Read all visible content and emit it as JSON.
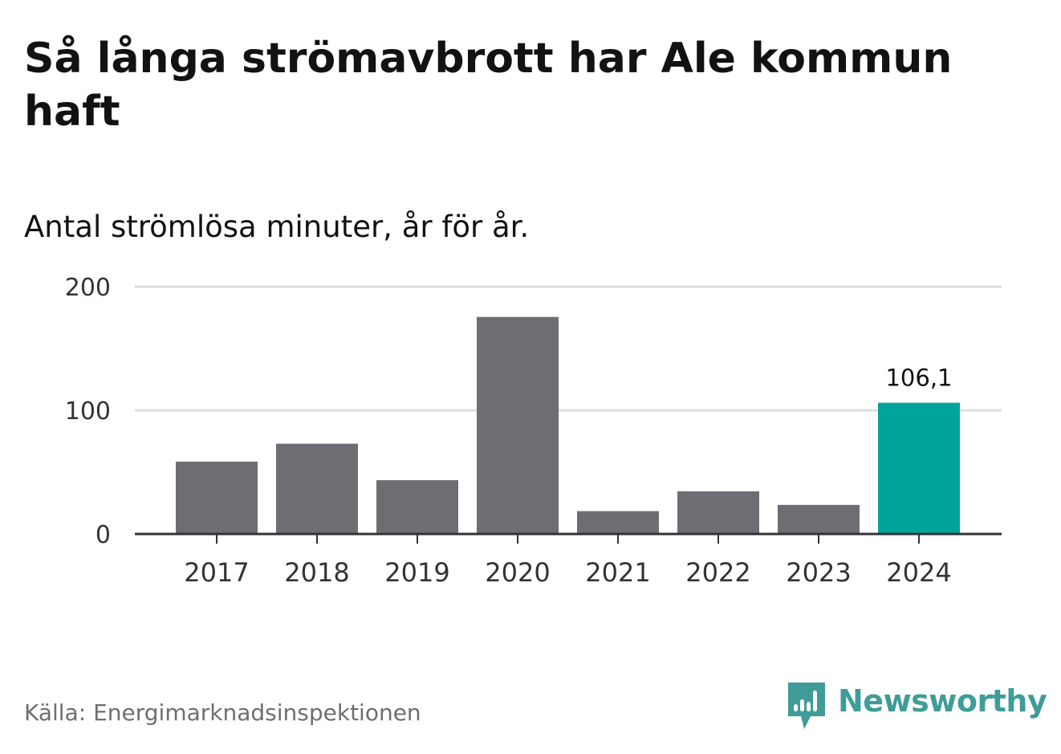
{
  "title": "Så långa strömavbrott har Ale kommun haft",
  "subtitle": "Antal strömlösa minuter, år för år.",
  "source": "Källa: Energimarknadsinspektionen",
  "brand": {
    "name": "Newsworthy",
    "logo_icon": "newsworthy-bar-chart-icon",
    "color": "#3f9c98"
  },
  "colors": {
    "bar": "#6e6d73",
    "highlight": "#00a499",
    "grid": "#dddddd",
    "axis": "#333333"
  },
  "chart_data": {
    "type": "bar",
    "categories": [
      "2017",
      "2018",
      "2019",
      "2020",
      "2021",
      "2022",
      "2023",
      "2024"
    ],
    "values": [
      58.5,
      73,
      43.5,
      175.5,
      18.5,
      34.5,
      23.5,
      106.1
    ],
    "highlight_index": 7,
    "data_labels": [
      "",
      "",
      "",
      "",
      "",
      "",
      "",
      "106,1"
    ],
    "ylim": [
      0,
      200
    ],
    "yticks": [
      0,
      100,
      200
    ],
    "ytick_labels": [
      "0",
      "100",
      "200"
    ],
    "grid": true,
    "legend": "none"
  }
}
